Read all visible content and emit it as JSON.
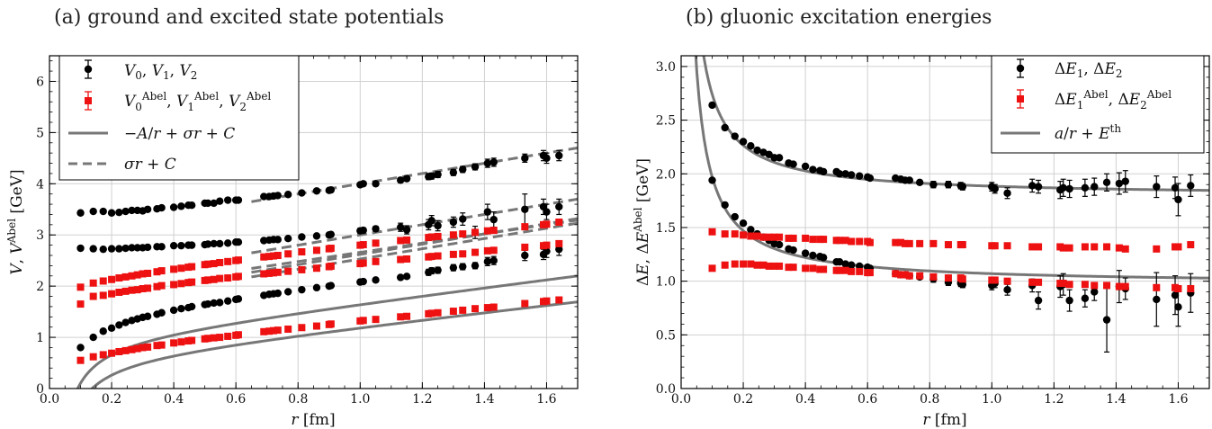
{
  "colors": {
    "black_series": "#000000",
    "red_series": "#ee1111",
    "fit_line": "#777777",
    "grid": "#d0d0d0"
  },
  "chart_data": [
    {
      "type": "scatter",
      "title": "(a) ground and excited state potentials",
      "xlabel": "r [fm]",
      "ylabel": "V, V^Abel [GeV]",
      "xlim": [
        0.0,
        1.7
      ],
      "ylim": [
        0,
        6.5
      ],
      "xticks": [
        "0.0",
        "0.2",
        "0.4",
        "0.6",
        "0.8",
        "1.0",
        "1.2",
        "1.4",
        "1.6"
      ],
      "yticks": [
        "0",
        "1",
        "2",
        "3",
        "4",
        "5",
        "6"
      ],
      "grid": true,
      "legend_position": "top-left",
      "legend": [
        "V0, V1, V2",
        "V0^Abel, V1^Abel, V2^Abel",
        "−A/r + σr + C",
        "σr + C"
      ],
      "x": [
        0.1,
        0.141,
        0.173,
        0.2,
        0.224,
        0.245,
        0.265,
        0.283,
        0.3,
        0.316,
        0.346,
        0.361,
        0.4,
        0.424,
        0.447,
        0.458,
        0.5,
        0.51,
        0.529,
        0.548,
        0.574,
        0.6,
        0.608,
        0.69,
        0.707,
        0.721,
        0.735,
        0.768,
        0.812,
        0.86,
        0.9,
        0.906,
        1.0,
        1.01,
        1.05,
        1.13,
        1.15,
        1.22,
        1.23,
        1.25,
        1.3,
        1.33,
        1.37,
        1.41,
        1.43,
        1.53,
        1.59,
        1.6,
        1.64
      ],
      "series": [
        {
          "name": "",
          "color": "black",
          "marker": "circle",
          "values": [
            0.8,
            1.0,
            1.12,
            1.18,
            1.24,
            1.29,
            1.33,
            1.36,
            1.39,
            1.41,
            1.45,
            1.48,
            1.53,
            1.56,
            1.58,
            1.6,
            1.64,
            1.65,
            1.67,
            1.68,
            1.71,
            1.74,
            1.75,
            1.82,
            1.84,
            1.85,
            1.86,
            1.89,
            1.93,
            1.97,
            2.0,
            2.01,
            2.08,
            2.09,
            2.12,
            2.17,
            2.19,
            2.27,
            2.3,
            2.31,
            2.36,
            2.38,
            2.4,
            2.48,
            2.5,
            2.6,
            2.62,
            2.68,
            2.72
          ],
          "errors": [
            0.02,
            0.02,
            0.02,
            0.02,
            0.02,
            0.02,
            0.02,
            0.02,
            0.02,
            0.02,
            0.02,
            0.02,
            0.02,
            0.02,
            0.02,
            0.02,
            0.02,
            0.02,
            0.02,
            0.02,
            0.02,
            0.02,
            0.02,
            0.03,
            0.03,
            0.03,
            0.03,
            0.03,
            0.03,
            0.03,
            0.03,
            0.03,
            0.03,
            0.03,
            0.03,
            0.04,
            0.04,
            0.06,
            0.06,
            0.06,
            0.06,
            0.06,
            0.06,
            0.08,
            0.08,
            0.1,
            0.1,
            0.12,
            0.12
          ]
        },
        {
          "name": "",
          "color": "black",
          "marker": "circle",
          "values": [
            2.74,
            2.73,
            2.72,
            2.73,
            2.73,
            2.74,
            2.75,
            2.75,
            2.75,
            2.76,
            2.77,
            2.77,
            2.79,
            2.79,
            2.8,
            2.8,
            2.81,
            2.82,
            2.83,
            2.83,
            2.84,
            2.86,
            2.86,
            2.89,
            2.9,
            2.91,
            2.91,
            2.93,
            2.96,
            2.98,
            3.0,
            3.01,
            3.08,
            3.09,
            3.12,
            3.15,
            3.1,
            3.2,
            3.28,
            3.18,
            3.25,
            3.31,
            3.05,
            3.45,
            3.3,
            3.5,
            3.55,
            3.45,
            3.55
          ],
          "errors": [
            0.02,
            0.02,
            0.02,
            0.02,
            0.02,
            0.02,
            0.02,
            0.02,
            0.02,
            0.02,
            0.02,
            0.02,
            0.02,
            0.02,
            0.02,
            0.02,
            0.02,
            0.02,
            0.02,
            0.02,
            0.02,
            0.02,
            0.02,
            0.03,
            0.03,
            0.03,
            0.03,
            0.03,
            0.04,
            0.04,
            0.04,
            0.04,
            0.05,
            0.05,
            0.05,
            0.08,
            0.08,
            0.1,
            0.1,
            0.1,
            0.1,
            0.12,
            0.12,
            0.15,
            0.15,
            0.3,
            0.15,
            0.15,
            0.15
          ]
        },
        {
          "name": "",
          "color": "black",
          "marker": "circle",
          "values": [
            3.43,
            3.46,
            3.46,
            3.43,
            3.44,
            3.46,
            3.48,
            3.48,
            3.47,
            3.5,
            3.51,
            3.53,
            3.54,
            3.56,
            3.58,
            3.58,
            3.62,
            3.62,
            3.62,
            3.66,
            3.68,
            3.68,
            3.68,
            3.75,
            3.75,
            3.76,
            3.77,
            3.79,
            3.82,
            3.86,
            3.87,
            3.88,
            3.98,
            4.0,
            4.0,
            4.07,
            4.1,
            4.14,
            4.15,
            4.18,
            4.22,
            4.28,
            4.33,
            4.4,
            4.42,
            4.5,
            4.55,
            4.5,
            4.55
          ],
          "errors": [
            0.02,
            0.02,
            0.02,
            0.02,
            0.02,
            0.02,
            0.02,
            0.02,
            0.02,
            0.02,
            0.02,
            0.02,
            0.02,
            0.02,
            0.02,
            0.02,
            0.02,
            0.02,
            0.02,
            0.02,
            0.02,
            0.02,
            0.02,
            0.03,
            0.03,
            0.03,
            0.03,
            0.03,
            0.03,
            0.03,
            0.03,
            0.03,
            0.04,
            0.04,
            0.04,
            0.05,
            0.05,
            0.06,
            0.06,
            0.06,
            0.06,
            0.06,
            0.06,
            0.08,
            0.08,
            0.08,
            0.1,
            0.1,
            0.1
          ]
        },
        {
          "name": "",
          "color": "red",
          "marker": "square",
          "values": [
            0.55,
            0.62,
            0.66,
            0.69,
            0.72,
            0.74,
            0.76,
            0.78,
            0.8,
            0.81,
            0.84,
            0.85,
            0.89,
            0.91,
            0.93,
            0.94,
            0.97,
            0.98,
            0.99,
            1.0,
            1.02,
            1.04,
            1.05,
            1.11,
            1.12,
            1.13,
            1.14,
            1.16,
            1.19,
            1.22,
            1.25,
            1.26,
            1.32,
            1.33,
            1.35,
            1.4,
            1.41,
            1.46,
            1.47,
            1.48,
            1.51,
            1.53,
            1.56,
            1.58,
            1.59,
            1.66,
            1.7,
            1.71,
            1.73
          ]
        },
        {
          "name": "",
          "color": "red",
          "marker": "square",
          "values": [
            1.65,
            1.8,
            1.82,
            1.85,
            1.88,
            1.9,
            1.92,
            1.93,
            1.95,
            1.96,
            1.99,
            2.01,
            2.03,
            2.05,
            2.07,
            2.08,
            2.11,
            2.12,
            2.13,
            2.15,
            2.16,
            2.18,
            2.19,
            2.24,
            2.25,
            2.26,
            2.27,
            2.29,
            2.32,
            2.35,
            2.38,
            2.39,
            2.44,
            2.45,
            2.48,
            2.52,
            2.53,
            2.57,
            2.58,
            2.59,
            2.62,
            2.63,
            2.66,
            2.69,
            2.7,
            2.76,
            2.79,
            2.8,
            2.83
          ]
        },
        {
          "name": "",
          "color": "red",
          "marker": "square",
          "values": [
            1.98,
            2.06,
            2.1,
            2.13,
            2.16,
            2.18,
            2.2,
            2.22,
            2.24,
            2.25,
            2.28,
            2.3,
            2.33,
            2.35,
            2.37,
            2.38,
            2.42,
            2.43,
            2.44,
            2.46,
            2.48,
            2.5,
            2.51,
            2.57,
            2.58,
            2.59,
            2.6,
            2.63,
            2.67,
            2.7,
            2.73,
            2.74,
            2.8,
            2.81,
            2.84,
            2.89,
            2.9,
            2.95,
            2.96,
            2.97,
            3.0,
            3.02,
            3.05,
            3.08,
            3.09,
            3.16,
            3.2,
            3.21,
            3.25
          ]
        }
      ],
      "fit_curves": [
        {
          "kind": "solid",
          "form": "-A/r + sigma*r + C",
          "A": 0.35,
          "sigma": 1.0,
          "C": 1.33
        },
        {
          "kind": "solid",
          "form": "-A/r + sigma*r + C",
          "A": 0.35,
          "sigma": 0.9,
          "C": 0.95
        },
        {
          "kind": "dashed",
          "form": "sigma*r + C",
          "sigma": 1.0,
          "C": 3.0,
          "xrange": [
            0.65,
            1.7
          ]
        },
        {
          "kind": "dashed",
          "form": "sigma*r + C",
          "sigma": 1.0,
          "C": 2.0,
          "xrange": [
            0.65,
            1.7
          ]
        },
        {
          "kind": "dashed",
          "form": "sigma*r + C",
          "sigma": 1.0,
          "C": 1.62,
          "xrange": [
            0.65,
            1.7
          ]
        },
        {
          "kind": "dashed",
          "form": "sigma*r + C",
          "sigma": 1.0,
          "C": 1.53,
          "xrange": [
            0.65,
            1.7
          ]
        },
        {
          "kind": "dashed",
          "form": "sigma*r + C",
          "sigma": 0.9,
          "C": 1.76,
          "xrange": [
            0.65,
            1.7
          ]
        }
      ]
    },
    {
      "type": "scatter",
      "title": "(b) gluonic excitation energies",
      "xlabel": "r [fm]",
      "ylabel": "ΔE, ΔE^Abel [GeV]",
      "xlim": [
        0.0,
        1.7
      ],
      "ylim": [
        0.0,
        3.1
      ],
      "xticks": [
        "0.0",
        "0.2",
        "0.4",
        "0.6",
        "0.8",
        "1.0",
        "1.2",
        "1.4",
        "1.6"
      ],
      "yticks": [
        "0.0",
        "0.5",
        "1.0",
        "1.5",
        "2.0",
        "2.5",
        "3.0"
      ],
      "grid": true,
      "legend_position": "top-right",
      "legend": [
        "ΔE1, ΔE2",
        "ΔE1^Abel, ΔE2^Abel",
        "a/r + E^th"
      ],
      "x": [
        0.1,
        0.141,
        0.173,
        0.2,
        0.224,
        0.245,
        0.265,
        0.283,
        0.3,
        0.316,
        0.346,
        0.361,
        0.4,
        0.424,
        0.447,
        0.458,
        0.5,
        0.51,
        0.529,
        0.548,
        0.574,
        0.6,
        0.608,
        0.69,
        0.707,
        0.721,
        0.735,
        0.768,
        0.812,
        0.86,
        0.9,
        0.906,
        1.0,
        1.01,
        1.05,
        1.13,
        1.15,
        1.22,
        1.23,
        1.25,
        1.3,
        1.33,
        1.37,
        1.41,
        1.43,
        1.53,
        1.59,
        1.6,
        1.64
      ],
      "series": [
        {
          "name": "",
          "color": "black",
          "marker": "circle",
          "values": [
            2.64,
            2.43,
            2.35,
            2.3,
            2.26,
            2.22,
            2.2,
            2.18,
            2.15,
            2.15,
            2.1,
            2.09,
            2.07,
            2.04,
            2.03,
            2.02,
            2.02,
            2.0,
            2.0,
            1.99,
            1.98,
            1.97,
            1.96,
            1.96,
            1.95,
            1.94,
            1.94,
            1.92,
            1.9,
            1.9,
            1.89,
            1.88,
            1.88,
            1.86,
            1.82,
            1.89,
            1.88,
            1.85,
            1.87,
            1.86,
            1.87,
            1.88,
            1.92,
            1.91,
            1.93,
            1.88,
            1.87,
            1.76,
            1.89
          ],
          "errors": [
            0.01,
            0.01,
            0.01,
            0.01,
            0.01,
            0.01,
            0.01,
            0.01,
            0.01,
            0.01,
            0.01,
            0.01,
            0.01,
            0.01,
            0.01,
            0.01,
            0.01,
            0.01,
            0.01,
            0.01,
            0.01,
            0.01,
            0.02,
            0.02,
            0.02,
            0.02,
            0.02,
            0.02,
            0.03,
            0.03,
            0.03,
            0.03,
            0.04,
            0.04,
            0.05,
            0.06,
            0.06,
            0.08,
            0.08,
            0.08,
            0.08,
            0.08,
            0.08,
            0.1,
            0.1,
            0.1,
            0.1,
            0.15,
            0.1
          ]
        },
        {
          "name": "",
          "color": "black",
          "marker": "circle",
          "values": [
            1.94,
            1.71,
            1.6,
            1.54,
            1.48,
            1.44,
            1.41,
            1.38,
            1.35,
            1.34,
            1.3,
            1.29,
            1.26,
            1.24,
            1.23,
            1.22,
            1.18,
            1.18,
            1.16,
            1.15,
            1.14,
            1.13,
            1.12,
            1.07,
            1.06,
            1.06,
            1.05,
            1.04,
            1.02,
            0.99,
            0.98,
            0.97,
            0.96,
            0.98,
            0.92,
            0.96,
            0.82,
            0.95,
            0.97,
            0.82,
            0.84,
            0.9,
            0.64,
            0.95,
            0.93,
            0.83,
            0.87,
            0.76,
            0.89
          ],
          "errors": [
            0.01,
            0.01,
            0.01,
            0.01,
            0.01,
            0.01,
            0.01,
            0.01,
            0.01,
            0.01,
            0.01,
            0.01,
            0.01,
            0.01,
            0.01,
            0.01,
            0.01,
            0.01,
            0.01,
            0.01,
            0.01,
            0.01,
            0.02,
            0.02,
            0.02,
            0.02,
            0.02,
            0.02,
            0.03,
            0.03,
            0.03,
            0.03,
            0.04,
            0.04,
            0.05,
            0.06,
            0.08,
            0.1,
            0.1,
            0.1,
            0.08,
            0.08,
            0.3,
            0.15,
            0.1,
            0.25,
            0.18,
            0.18,
            0.18
          ]
        },
        {
          "name": "",
          "color": "red",
          "marker": "square",
          "values": [
            1.46,
            1.44,
            1.44,
            1.43,
            1.42,
            1.42,
            1.41,
            1.41,
            1.41,
            1.41,
            1.4,
            1.4,
            1.4,
            1.39,
            1.39,
            1.39,
            1.38,
            1.38,
            1.38,
            1.37,
            1.37,
            1.37,
            1.36,
            1.36,
            1.36,
            1.35,
            1.35,
            1.35,
            1.35,
            1.34,
            1.34,
            1.34,
            1.33,
            1.33,
            1.33,
            1.32,
            1.32,
            1.32,
            1.31,
            1.31,
            1.32,
            1.32,
            1.32,
            1.31,
            1.3,
            1.3,
            1.32,
            1.32,
            1.34
          ]
        },
        {
          "name": "",
          "color": "red",
          "marker": "square",
          "values": [
            1.12,
            1.15,
            1.16,
            1.16,
            1.16,
            1.15,
            1.15,
            1.14,
            1.14,
            1.14,
            1.13,
            1.13,
            1.12,
            1.12,
            1.11,
            1.11,
            1.1,
            1.1,
            1.1,
            1.09,
            1.09,
            1.08,
            1.08,
            1.07,
            1.06,
            1.06,
            1.05,
            1.05,
            1.04,
            1.03,
            1.03,
            1.02,
            1.01,
            1.01,
            1.0,
            0.99,
            0.99,
            0.98,
            0.98,
            0.97,
            0.97,
            0.96,
            0.96,
            0.95,
            0.95,
            0.94,
            0.94,
            0.93,
            0.93
          ]
        }
      ],
      "fit_curves": [
        {
          "kind": "solid",
          "form": "a/r + E_th",
          "a": 0.095,
          "E_th": 1.79
        },
        {
          "kind": "solid",
          "form": "a/r + E_th",
          "a": 0.1,
          "E_th": 0.97
        }
      ]
    }
  ]
}
